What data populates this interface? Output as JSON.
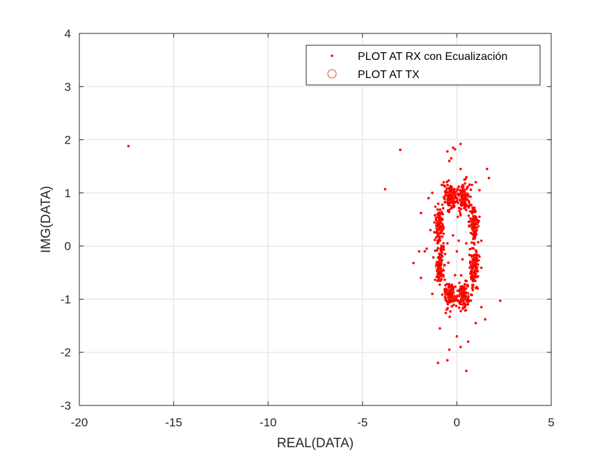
{
  "chart_data": {
    "type": "scatter",
    "title": "",
    "xlabel": "REAL(DATA)",
    "ylabel": "IMG(DATA)",
    "xlim": [
      -20,
      5
    ],
    "ylim": [
      -3,
      4
    ],
    "xticks": [
      -20,
      -15,
      -10,
      -5,
      0,
      5
    ],
    "yticks": [
      -3,
      -2,
      -1,
      0,
      1,
      2,
      3,
      4
    ],
    "xtick_labels": [
      "-20",
      "-15",
      "-10",
      "-5",
      "0",
      "5"
    ],
    "ytick_labels": [
      "-3",
      "-2",
      "-1",
      "0",
      "1",
      "2",
      "3",
      "4"
    ],
    "grid": true,
    "legend_position": "top-right",
    "colors": {
      "rx_points": "#ff0000",
      "tx_markers": "#d95319",
      "grid": "#dfdfdf",
      "axis": "#262626"
    },
    "series": [
      {
        "name": "PLOT AT RX con Ecualización",
        "marker": "dot",
        "color": "#ff0000",
        "clusters": [
          {
            "center": [
              -0.92,
              -0.38
            ],
            "spread": [
              0.12,
              0.17
            ],
            "count": 110
          },
          {
            "center": [
              -0.92,
              0.38
            ],
            "spread": [
              0.12,
              0.17
            ],
            "count": 110
          },
          {
            "center": [
              0.92,
              -0.38
            ],
            "spread": [
              0.12,
              0.17
            ],
            "count": 110
          },
          {
            "center": [
              0.92,
              0.38
            ],
            "spread": [
              0.12,
              0.17
            ],
            "count": 110
          },
          {
            "center": [
              -0.38,
              -0.92
            ],
            "spread": [
              0.16,
              0.13
            ],
            "count": 110
          },
          {
            "center": [
              0.38,
              -0.92
            ],
            "spread": [
              0.16,
              0.13
            ],
            "count": 110
          },
          {
            "center": [
              -0.38,
              0.92
            ],
            "spread": [
              0.16,
              0.13
            ],
            "count": 110
          },
          {
            "center": [
              0.38,
              0.92
            ],
            "spread": [
              0.16,
              0.13
            ],
            "count": 110
          }
        ],
        "outliers": [
          [
            -17.4,
            1.88
          ],
          [
            -3.8,
            1.07
          ],
          [
            -3.0,
            1.81
          ],
          [
            -2.3,
            -0.32
          ],
          [
            -2.0,
            -0.1
          ],
          [
            -1.9,
            0.62
          ],
          [
            -1.9,
            -0.6
          ],
          [
            -1.3,
            -0.9
          ],
          [
            -1.0,
            -2.2
          ],
          [
            -0.9,
            -1.55
          ],
          [
            -0.8,
            1.15
          ],
          [
            -0.7,
            1.2
          ],
          [
            -0.5,
            1.78
          ],
          [
            -0.4,
            1.6
          ],
          [
            -0.4,
            -1.95
          ],
          [
            -0.5,
            -2.15
          ],
          [
            -0.3,
            1.65
          ],
          [
            -0.2,
            1.85
          ],
          [
            -0.1,
            1.82
          ],
          [
            0.0,
            -1.7
          ],
          [
            0.2,
            1.92
          ],
          [
            0.2,
            1.45
          ],
          [
            0.2,
            -1.9
          ],
          [
            0.4,
            1.25
          ],
          [
            0.5,
            -2.35
          ],
          [
            0.6,
            -1.8
          ],
          [
            0.8,
            1.15
          ],
          [
            1.0,
            -1.45
          ],
          [
            1.0,
            1.2
          ],
          [
            1.2,
            1.05
          ],
          [
            1.2,
            -0.2
          ],
          [
            1.2,
            0.55
          ],
          [
            1.3,
            -1.15
          ],
          [
            1.5,
            -1.38
          ],
          [
            1.6,
            1.45
          ],
          [
            1.7,
            1.28
          ],
          [
            2.3,
            -1.03
          ],
          [
            -1.6,
            -0.05
          ],
          [
            -1.5,
            0.9
          ],
          [
            -1.7,
            -0.1
          ],
          [
            0.1,
            0.1
          ],
          [
            -0.2,
            0.2
          ],
          [
            0.3,
            -0.25
          ],
          [
            0.05,
            0.55
          ],
          [
            -0.1,
            -0.55
          ],
          [
            0.5,
            0.05
          ],
          [
            -0.5,
            0.05
          ],
          [
            0.0,
            -0.1
          ],
          [
            1.3,
            0.1
          ],
          [
            -1.4,
            0.3
          ],
          [
            -1.3,
            1.0
          ],
          [
            1.1,
            -0.8
          ]
        ]
      },
      {
        "name": "PLOT AT TX",
        "marker": "circle",
        "color": "#d95319",
        "points": [
          [
            -0.92,
            -0.38
          ],
          [
            -0.92,
            0.38
          ],
          [
            0.92,
            -0.38
          ],
          [
            0.92,
            0.38
          ],
          [
            -0.38,
            -0.92
          ],
          [
            0.38,
            -0.92
          ],
          [
            -0.38,
            0.92
          ],
          [
            0.38,
            0.92
          ]
        ]
      }
    ]
  }
}
